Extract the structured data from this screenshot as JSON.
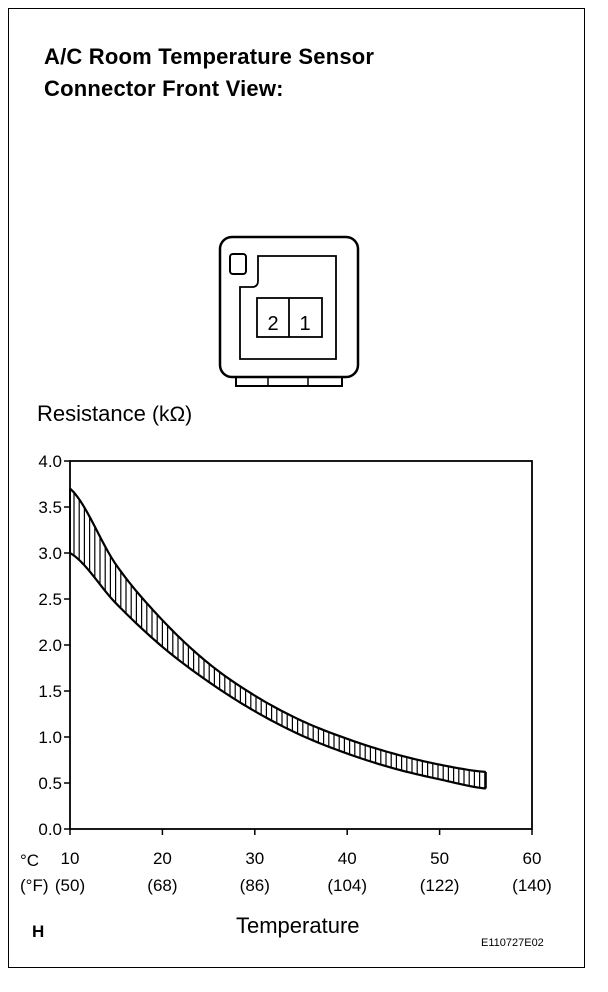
{
  "title": {
    "line1": "A/C Room Temperature Sensor",
    "line2": "Connector Front View:"
  },
  "connector": {
    "pins": [
      {
        "id": "pin-2",
        "label": "2"
      },
      {
        "id": "pin-1",
        "label": "1"
      }
    ]
  },
  "chart_data": {
    "type": "area",
    "ylabel": "Resistance",
    "ylabel_unit": "(kΩ)",
    "xlabel": "Temperature",
    "x_unit_c": "°C",
    "x_unit_f": "(°F)",
    "xlim": [
      10,
      60
    ],
    "ylim": [
      0,
      4.0
    ],
    "y_ticks": [
      "0.0",
      "0.5",
      "1.0",
      "1.5",
      "2.0",
      "2.5",
      "3.0",
      "3.5",
      "4.0"
    ],
    "x_ticks": [
      {
        "c": "10",
        "f": "(50)"
      },
      {
        "c": "20",
        "f": "(68)"
      },
      {
        "c": "30",
        "f": "(86)"
      },
      {
        "c": "40",
        "f": "(104)"
      },
      {
        "c": "50",
        "f": "(122)"
      },
      {
        "c": "60",
        "f": "(140)"
      }
    ],
    "series": [
      {
        "x": [
          10,
          15,
          20,
          25,
          30,
          35,
          40,
          45,
          50,
          55
        ],
        "values": [
          3.7,
          2.87,
          2.27,
          1.8,
          1.45,
          1.18,
          0.98,
          0.82,
          0.7,
          0.62
        ]
      },
      {
        "x": [
          10,
          15,
          20,
          25,
          30,
          35,
          40,
          45,
          50,
          55
        ],
        "values": [
          3.0,
          2.45,
          1.98,
          1.6,
          1.28,
          1.02,
          0.82,
          0.66,
          0.54,
          0.44
        ]
      }
    ],
    "band_hatch": "vertical"
  },
  "footer": {
    "corner_mark": "H",
    "figure_code": "E110727E02"
  }
}
